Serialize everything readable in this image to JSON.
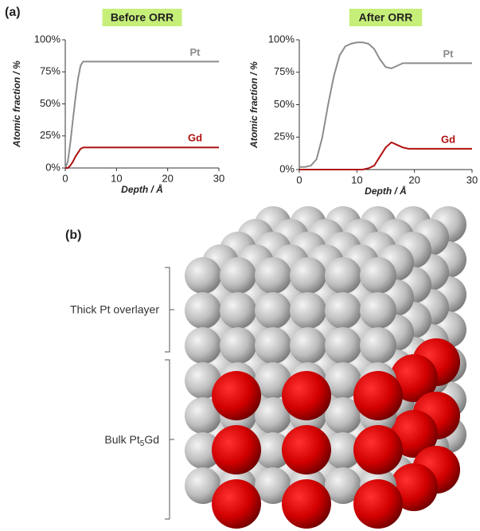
{
  "panels": {
    "a": "(a)",
    "b": "(b)"
  },
  "chart_data": [
    {
      "type": "line",
      "title": "Before ORR",
      "x_label": "Depth / Å",
      "y_label": "Atomic fraction / %",
      "x": [
        0,
        0.5,
        1,
        1.5,
        2,
        2.5,
        3,
        3.5,
        4,
        5,
        10,
        15,
        20,
        25,
        30
      ],
      "series": [
        {
          "name": "Pt",
          "color": "#8c8c8c",
          "values": [
            0,
            5,
            20,
            38,
            55,
            70,
            80,
            83,
            83,
            83,
            83,
            83,
            83,
            83,
            83
          ]
        },
        {
          "name": "Gd",
          "color": "#b01010",
          "values": [
            0,
            0,
            2,
            5,
            9,
            12,
            15,
            16,
            16,
            16,
            16,
            16,
            16,
            16,
            16
          ]
        }
      ],
      "xlim": [
        0,
        30
      ],
      "xticks": [
        0,
        10,
        20,
        30
      ],
      "ylim": [
        0,
        100
      ],
      "yticks": [
        {
          "value": 0,
          "label": "0%"
        },
        {
          "value": 25,
          "label": "25%"
        },
        {
          "value": 50,
          "label": "50%"
        },
        {
          "value": 75,
          "label": "75%"
        },
        {
          "value": 100,
          "label": "100%"
        }
      ]
    },
    {
      "type": "line",
      "title": "After ORR",
      "x_label": "Depth / Å",
      "y_label": "Atomic fraction / %",
      "x": [
        0,
        1,
        2,
        3,
        4,
        5,
        6,
        7,
        8,
        9,
        10,
        11,
        12,
        13,
        14,
        15,
        16,
        17,
        18,
        19,
        20,
        25,
        30
      ],
      "series": [
        {
          "name": "Pt",
          "color": "#8c8c8c",
          "values": [
            2,
            2,
            3,
            8,
            25,
            50,
            72,
            88,
            95,
            97,
            98,
            98,
            97,
            93,
            85,
            79,
            78,
            80,
            82,
            82,
            82,
            82,
            82
          ]
        },
        {
          "name": "Gd",
          "color": "#b01010",
          "values": [
            0,
            0,
            0,
            0,
            0,
            0,
            0,
            0,
            0,
            0,
            0,
            0,
            1,
            3,
            10,
            17,
            21,
            19,
            17,
            16,
            16,
            16,
            16
          ]
        }
      ],
      "xlim": [
        0,
        30
      ],
      "xticks": [
        0,
        10,
        20,
        30
      ],
      "ylim": [
        0,
        100
      ],
      "yticks": [
        {
          "value": 0,
          "label": "0%"
        },
        {
          "value": 25,
          "label": "25%"
        },
        {
          "value": 50,
          "label": "50%"
        },
        {
          "value": 75,
          "label": "75%"
        },
        {
          "value": 100,
          "label": "100%"
        }
      ]
    }
  ],
  "diagram": {
    "overlayer": "Thick Pt overlayer",
    "bulk": [
      "Bulk Pt",
      "5",
      "Gd"
    ]
  }
}
